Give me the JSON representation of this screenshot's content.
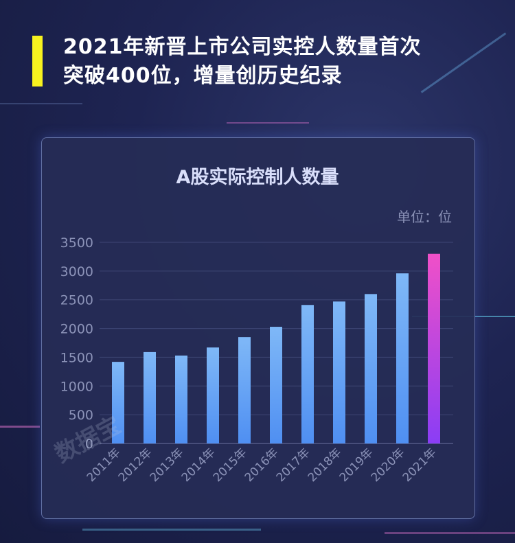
{
  "headline": {
    "line1": "2021年新晋上市公司实控人数量首次",
    "line2": "突破400位，增量创历史纪录"
  },
  "chart": {
    "title": "A股实际控制人数量",
    "unit": "单位：位"
  },
  "watermark": "数据宝",
  "colors": {
    "accent_bar": "#f7f21f",
    "bar_top": "#7fb8f7",
    "bar_bottom": "#4f8ff2",
    "highlight_top": "#f050c8",
    "highlight_bottom": "#8a3df5",
    "grid": "#3e4675",
    "tick_text": "#8c93b8"
  },
  "chart_data": {
    "type": "bar",
    "title": "A股实际控制人数量",
    "unit": "单位：位",
    "categories": [
      "2011年",
      "2012年",
      "2013年",
      "2014年",
      "2015年",
      "2016年",
      "2017年",
      "2018年",
      "2019年",
      "2020年",
      "2021年"
    ],
    "values": [
      1420,
      1590,
      1530,
      1670,
      1850,
      2030,
      2410,
      2470,
      2600,
      2960,
      3300
    ],
    "yticks": [
      0,
      500,
      1000,
      1500,
      2000,
      2500,
      3000,
      3500
    ],
    "ylim": [
      0,
      3500
    ],
    "grid": true,
    "highlight_index": 10
  }
}
